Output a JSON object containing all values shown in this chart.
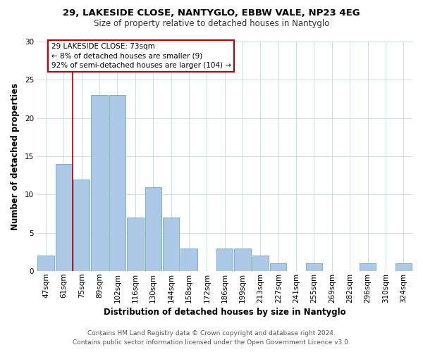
{
  "title": "29, LAKESIDE CLOSE, NANTYGLO, EBBW VALE, NP23 4EG",
  "subtitle": "Size of property relative to detached houses in Nantyglo",
  "xlabel": "Distribution of detached houses by size in Nantyglo",
  "ylabel": "Number of detached properties",
  "bin_labels": [
    "47sqm",
    "61sqm",
    "75sqm",
    "89sqm",
    "102sqm",
    "116sqm",
    "130sqm",
    "144sqm",
    "158sqm",
    "172sqm",
    "186sqm",
    "199sqm",
    "213sqm",
    "227sqm",
    "241sqm",
    "255sqm",
    "269sqm",
    "282sqm",
    "296sqm",
    "310sqm",
    "324sqm"
  ],
  "bar_heights": [
    2,
    14,
    12,
    23,
    23,
    7,
    11,
    7,
    3,
    0,
    3,
    3,
    2,
    1,
    0,
    1,
    0,
    0,
    1,
    0,
    1
  ],
  "bar_color": "#adc9e8",
  "bar_edge_color": "#7aafd4",
  "vline_x_index": 2,
  "vline_color": "#aa0000",
  "annotation_line1": "29 LAKESIDE CLOSE: 73sqm",
  "annotation_line2": "← 8% of detached houses are smaller (9)",
  "annotation_line3": "92% of semi-detached houses are larger (104) →",
  "annotation_box_color": "#ffffff",
  "annotation_box_edge": "#bb0000",
  "ylim": [
    0,
    30
  ],
  "yticks": [
    0,
    5,
    10,
    15,
    20,
    25,
    30
  ],
  "footer_line1": "Contains HM Land Registry data © Crown copyright and database right 2024.",
  "footer_line2": "Contains public sector information licensed under the Open Government Licence v3.0.",
  "background_color": "#ffffff",
  "grid_color": "#c8dff0",
  "title_fontsize": 9.5,
  "subtitle_fontsize": 8.5,
  "axis_label_fontsize": 8.5,
  "tick_fontsize": 7.5,
  "footer_fontsize": 6.5
}
